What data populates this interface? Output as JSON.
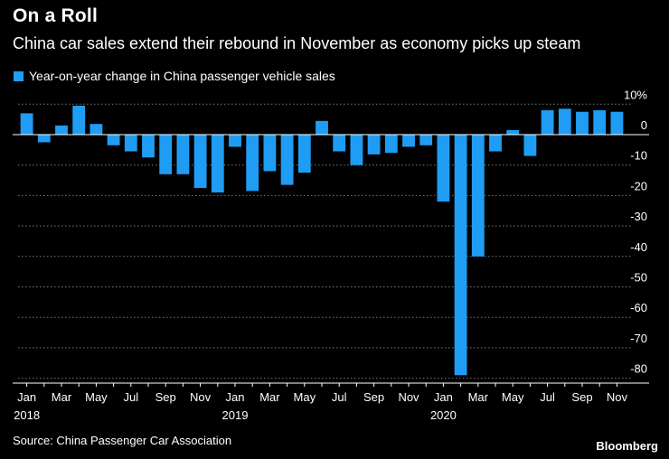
{
  "chart_data": {
    "type": "bar",
    "title": "On a Roll",
    "subtitle": "China car sales extend their rebound in November as economy picks up steam",
    "legend": "Year-on-year change in China passenger vehicle sales",
    "source": "Source: China Passenger Car Association",
    "brand": "Bloomberg",
    "color": "#1f9df5",
    "ylim": [
      -82,
      10
    ],
    "y_ticks": [
      10,
      0,
      -10,
      -20,
      -30,
      -40,
      -50,
      -60,
      -70,
      -80
    ],
    "y_tick_labels": [
      "10%",
      "0",
      "-10",
      "-20",
      "-30",
      "-40",
      "-50",
      "-60",
      "-70",
      "-80"
    ],
    "categories": [
      "Jan 2018",
      "Feb 2018",
      "Mar 2018",
      "Apr 2018",
      "May 2018",
      "Jun 2018",
      "Jul 2018",
      "Aug 2018",
      "Sep 2018",
      "Oct 2018",
      "Nov 2018",
      "Dec 2018",
      "Jan 2019",
      "Feb 2019",
      "Mar 2019",
      "Apr 2019",
      "May 2019",
      "Jun 2019",
      "Jul 2019",
      "Aug 2019",
      "Sep 2019",
      "Oct 2019",
      "Nov 2019",
      "Dec 2019",
      "Jan 2020",
      "Feb 2020",
      "Mar 2020",
      "Apr 2020",
      "May 2020",
      "Jun 2020",
      "Jul 2020",
      "Aug 2020",
      "Sep 2020",
      "Oct 2020",
      "Nov 2020"
    ],
    "values": [
      7,
      -2.5,
      3,
      9.5,
      3.5,
      -3.5,
      -5.5,
      -7.5,
      -13,
      -13,
      -17.5,
      -19,
      -4,
      -18.5,
      -12,
      -16.5,
      -12.5,
      4.5,
      -5.5,
      -10,
      -6.5,
      -6,
      -4,
      -3.5,
      -22,
      -79,
      -40,
      -5.5,
      1.5,
      -7,
      8,
      8.5,
      7.5,
      8,
      7.5
    ],
    "x_tick_labels": [
      "Jan",
      "Mar",
      "May",
      "Jul",
      "Sep",
      "Nov",
      "Jan",
      "Mar",
      "May",
      "Jul",
      "Sep",
      "Nov",
      "Jan",
      "Mar",
      "May",
      "Jul",
      "Sep",
      "Nov"
    ],
    "x_tick_indices": [
      0,
      2,
      4,
      6,
      8,
      10,
      12,
      14,
      16,
      18,
      20,
      22,
      24,
      26,
      28,
      30,
      32,
      34
    ],
    "year_labels": [
      "2018",
      "2019",
      "2020"
    ],
    "year_indices": [
      0,
      12,
      24
    ]
  }
}
